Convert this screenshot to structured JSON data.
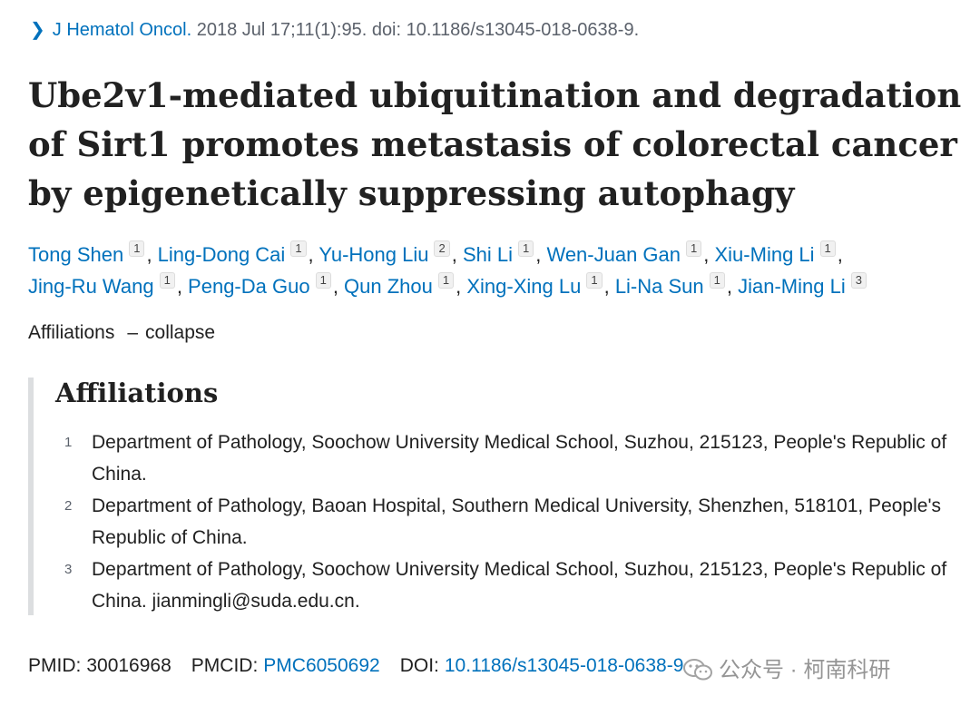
{
  "citation": {
    "journal": "J Hematol Oncol.",
    "details": "2018 Jul 17;11(1):95. doi: 10.1186/s13045-018-0638-9."
  },
  "title": "Ube2v1-mediated ubiquitination and degradation of Sirt1 promotes metastasis of colorectal cancer by epigenetically suppressing autophagy",
  "authors": [
    {
      "name": "Tong Shen",
      "aff": "1"
    },
    {
      "name": "Ling-Dong Cai",
      "aff": "1"
    },
    {
      "name": "Yu-Hong Liu",
      "aff": "2"
    },
    {
      "name": "Shi Li",
      "aff": "1"
    },
    {
      "name": "Wen-Juan Gan",
      "aff": "1"
    },
    {
      "name": "Xiu-Ming Li",
      "aff": "1"
    },
    {
      "name": "Jing-Ru Wang",
      "aff": "1"
    },
    {
      "name": "Peng-Da Guo",
      "aff": "1"
    },
    {
      "name": "Qun Zhou",
      "aff": "1"
    },
    {
      "name": "Xing-Xing Lu",
      "aff": "1"
    },
    {
      "name": "Li-Na Sun",
      "aff": "1"
    },
    {
      "name": "Jian-Ming Li",
      "aff": "3"
    }
  ],
  "affiliations_toggle": {
    "label": "Affiliations",
    "dash": "–",
    "action": "collapse"
  },
  "affiliations": {
    "heading": "Affiliations",
    "items": [
      {
        "num": "1",
        "text": "Department of Pathology, Soochow University Medical School, Suzhou, 215123, People's Republic of China."
      },
      {
        "num": "2",
        "text": "Department of Pathology, Baoan Hospital, Southern Medical University, Shenzhen, 518101, People's Republic of China."
      },
      {
        "num": "3",
        "text": "Department of Pathology, Soochow University Medical School, Suzhou, 215123, People's Republic of China. jianmingli@suda.edu.cn."
      }
    ]
  },
  "identifiers": {
    "pmid_label": "PMID:",
    "pmid": "30016968",
    "pmcid_label": "PMCID:",
    "pmcid": "PMC6050692",
    "doi_label": "DOI:",
    "doi": "10.1186/s13045-018-0638-9"
  },
  "watermark": {
    "text": "公众号 · 柯南科研",
    "icon": "wechat-icon"
  },
  "colors": {
    "link": "#0071bc",
    "text": "#212121",
    "muted": "#5b616b",
    "affiliation_border": "#dcdee0"
  }
}
